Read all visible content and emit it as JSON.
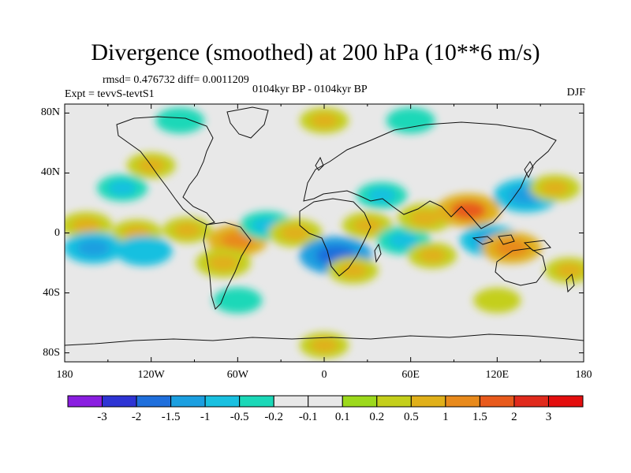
{
  "title": "Divergence (smoothed) at 200 hPa (10**6 m/s)",
  "stats": "rmsd= 0.476732 diff= 0.0011209",
  "experiment": "Expt = tevvS-tevtS1",
  "period": "0104kyr BP - 0104kyr BP",
  "season": "DJF",
  "chart_data": {
    "type": "heatmap",
    "projection": "cylindrical-equidistant",
    "xlim": [
      -180,
      180
    ],
    "ylim": [
      -90,
      90
    ],
    "x_ticks": [
      {
        "value": -180,
        "label": "180"
      },
      {
        "value": -120,
        "label": "120W"
      },
      {
        "value": -60,
        "label": "60W"
      },
      {
        "value": 0,
        "label": "0"
      },
      {
        "value": 60,
        "label": "60E"
      },
      {
        "value": 120,
        "label": "120E"
      },
      {
        "value": 180,
        "label": "180"
      }
    ],
    "y_ticks": [
      {
        "value": 80,
        "label": "80N"
      },
      {
        "value": 40,
        "label": "40N"
      },
      {
        "value": 0,
        "label": "0"
      },
      {
        "value": -40,
        "label": "40S"
      },
      {
        "value": -80,
        "label": "80S"
      }
    ],
    "colorbar": {
      "levels": [
        "-3",
        "-2",
        "-1.5",
        "-1",
        "-0.5",
        "-0.2",
        "-0.1",
        "0.1",
        "0.2",
        "0.5",
        "1",
        "1.5",
        "2",
        "3"
      ],
      "colors": [
        "#8a1ee0",
        "#2e34d4",
        "#1f6fdc",
        "#1b9fe0",
        "#19c0e0",
        "#1bd8b8",
        "#e8e8e8",
        "#9cd91c",
        "#c4cf1b",
        "#e0b01a",
        "#e88a1c",
        "#e85a1c",
        "#e02a1c",
        "#e30e0e"
      ],
      "extend": "both"
    },
    "features": [
      {
        "lon": -165,
        "lat": 5,
        "value": 0.7
      },
      {
        "lon": -130,
        "lat": 0,
        "value": 0.6
      },
      {
        "lon": -95,
        "lat": 2,
        "value": 0.5
      },
      {
        "lon": -160,
        "lat": -10,
        "value": -1.2
      },
      {
        "lon": -125,
        "lat": -12,
        "value": -1.0
      },
      {
        "lon": -140,
        "lat": 30,
        "value": -0.6
      },
      {
        "lon": -120,
        "lat": 45,
        "value": 0.5
      },
      {
        "lon": -60,
        "lat": -5,
        "value": 1.2
      },
      {
        "lon": -70,
        "lat": -20,
        "value": 0.9
      },
      {
        "lon": -40,
        "lat": 5,
        "value": -0.8
      },
      {
        "lon": -20,
        "lat": 0,
        "value": 0.8
      },
      {
        "lon": 8,
        "lat": -15,
        "value": -2.0
      },
      {
        "lon": 20,
        "lat": -25,
        "value": 0.6
      },
      {
        "lon": 30,
        "lat": 5,
        "value": 0.6
      },
      {
        "lon": 40,
        "lat": 25,
        "value": -0.6
      },
      {
        "lon": 55,
        "lat": -5,
        "value": -0.8
      },
      {
        "lon": 70,
        "lat": 10,
        "value": 0.9
      },
      {
        "lon": 75,
        "lat": -15,
        "value": 0.5
      },
      {
        "lon": 100,
        "lat": 15,
        "value": 1.5
      },
      {
        "lon": 115,
        "lat": -5,
        "value": -1.2
      },
      {
        "lon": 130,
        "lat": -10,
        "value": 1.2
      },
      {
        "lon": 140,
        "lat": 25,
        "value": -1.5
      },
      {
        "lon": 160,
        "lat": 30,
        "value": 0.6
      },
      {
        "lon": 170,
        "lat": -25,
        "value": 0.5
      },
      {
        "lon": 0,
        "lat": 75,
        "value": 0.5
      },
      {
        "lon": -100,
        "lat": 75,
        "value": -0.5
      },
      {
        "lon": 60,
        "lat": 75,
        "value": -0.5
      },
      {
        "lon": 120,
        "lat": -45,
        "value": 0.4
      },
      {
        "lon": -60,
        "lat": -45,
        "value": -0.5
      },
      {
        "lon": 0,
        "lat": -75,
        "value": 0.5
      }
    ]
  }
}
